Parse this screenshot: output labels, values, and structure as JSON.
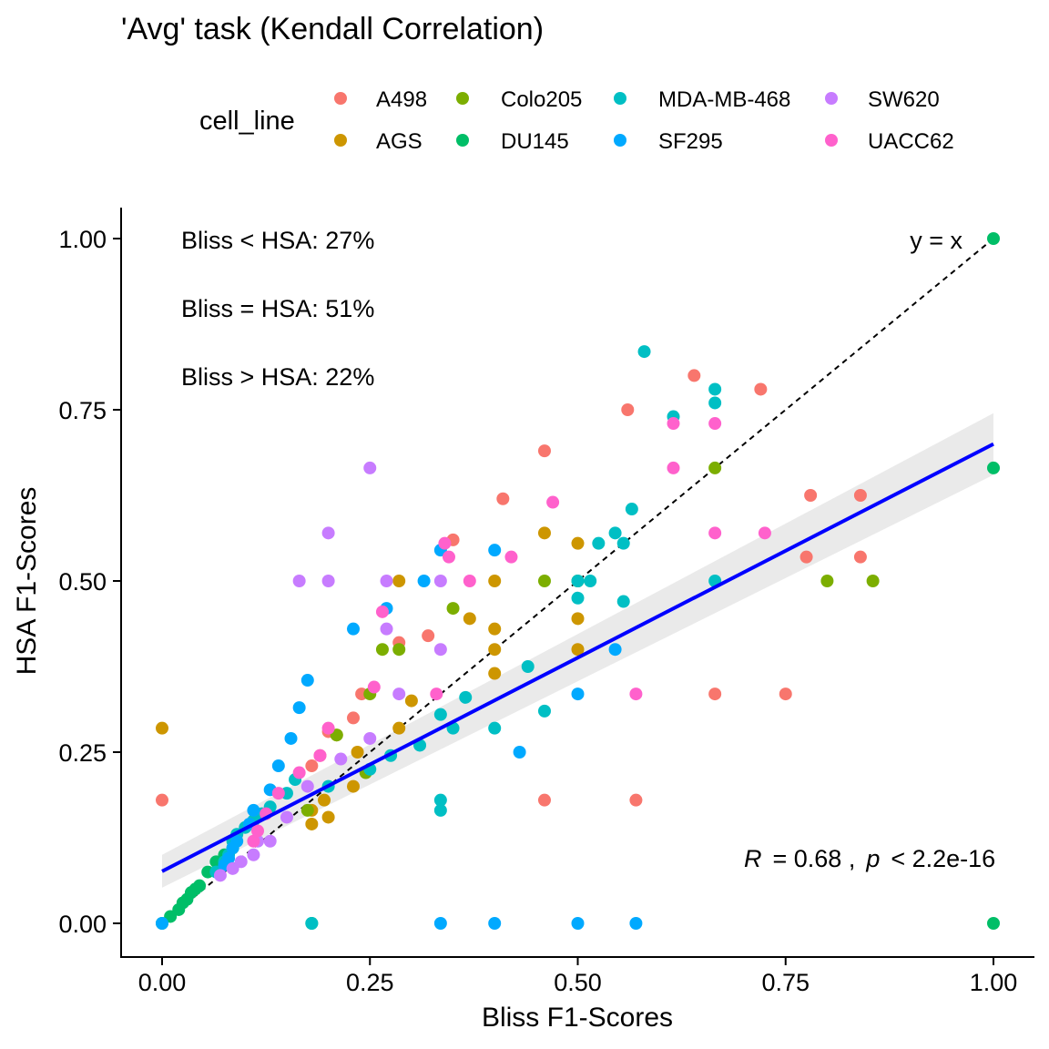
{
  "chart_data": {
    "type": "scatter",
    "title": "'Avg' task (Kendall Correlation)",
    "xlabel": "Bliss F1-Scores",
    "ylabel": "HSA F1-Scores",
    "xlim": [
      -0.1,
      1.1
    ],
    "ylim": [
      -0.05,
      1.05
    ],
    "xticks": [
      "0.00",
      "0.25",
      "0.50",
      "0.75",
      "1.00"
    ],
    "yticks": [
      "0.00",
      "0.25",
      "0.50",
      "0.75",
      "1.00"
    ],
    "grid": false,
    "legend": {
      "title": "cell_line",
      "position": "top",
      "entries": [
        {
          "name": "A498",
          "color": "#F8766D"
        },
        {
          "name": "AGS",
          "color": "#CD9600"
        },
        {
          "name": "Colo205",
          "color": "#7CAE00"
        },
        {
          "name": "DU145",
          "color": "#00BE67"
        },
        {
          "name": "MDA-MB-468",
          "color": "#00BFC4"
        },
        {
          "name": "SF295",
          "color": "#00A9FF"
        },
        {
          "name": "SW620",
          "color": "#C77CFF"
        },
        {
          "name": "UACC62",
          "color": "#FF61CC"
        }
      ]
    },
    "series": [
      {
        "name": "A498",
        "points": [
          [
            0.0,
            0.18
          ],
          [
            0.18,
            0.23
          ],
          [
            0.19,
            0.245
          ],
          [
            0.2,
            0.28
          ],
          [
            0.24,
            0.335
          ],
          [
            0.23,
            0.3
          ],
          [
            0.285,
            0.41
          ],
          [
            0.32,
            0.42
          ],
          [
            0.35,
            0.56
          ],
          [
            0.41,
            0.62
          ],
          [
            0.46,
            0.69
          ],
          [
            0.56,
            0.75
          ],
          [
            0.64,
            0.8
          ],
          [
            0.72,
            0.78
          ],
          [
            0.78,
            0.625
          ],
          [
            0.84,
            0.625
          ],
          [
            0.84,
            0.535
          ],
          [
            0.775,
            0.535
          ],
          [
            0.46,
            0.18
          ],
          [
            0.57,
            0.18
          ],
          [
            0.665,
            0.335
          ],
          [
            0.75,
            0.335
          ]
        ]
      },
      {
        "name": "AGS",
        "points": [
          [
            0.0,
            0.285
          ],
          [
            0.18,
            0.165
          ],
          [
            0.18,
            0.145
          ],
          [
            0.195,
            0.18
          ],
          [
            0.2,
            0.155
          ],
          [
            0.21,
            0.275
          ],
          [
            0.23,
            0.2
          ],
          [
            0.235,
            0.25
          ],
          [
            0.285,
            0.285
          ],
          [
            0.285,
            0.5
          ],
          [
            0.3,
            0.325
          ],
          [
            0.37,
            0.445
          ],
          [
            0.4,
            0.5
          ],
          [
            0.4,
            0.43
          ],
          [
            0.4,
            0.4
          ],
          [
            0.4,
            0.365
          ],
          [
            0.46,
            0.57
          ],
          [
            0.5,
            0.555
          ],
          [
            0.5,
            0.445
          ],
          [
            0.5,
            0.4
          ]
        ]
      },
      {
        "name": "Colo205",
        "points": [
          [
            0.175,
            0.165
          ],
          [
            0.21,
            0.275
          ],
          [
            0.245,
            0.22
          ],
          [
            0.25,
            0.335
          ],
          [
            0.265,
            0.4
          ],
          [
            0.285,
            0.4
          ],
          [
            0.35,
            0.46
          ],
          [
            0.46,
            0.5
          ],
          [
            0.5,
            0.5
          ],
          [
            0.665,
            0.665
          ],
          [
            0.8,
            0.5
          ],
          [
            0.855,
            0.5
          ]
        ]
      },
      {
        "name": "DU145",
        "points": [
          [
            0.0,
            0.0
          ],
          [
            0.01,
            0.01
          ],
          [
            0.02,
            0.02
          ],
          [
            0.025,
            0.03
          ],
          [
            0.03,
            0.035
          ],
          [
            0.035,
            0.045
          ],
          [
            0.04,
            0.05
          ],
          [
            0.045,
            0.055
          ],
          [
            0.055,
            0.075
          ],
          [
            0.065,
            0.09
          ],
          [
            0.075,
            0.1
          ],
          [
            0.085,
            0.11
          ],
          [
            0.18,
            0.0
          ],
          [
            1.0,
            1.0
          ],
          [
            1.0,
            0.665
          ],
          [
            1.0,
            0.0
          ]
        ]
      },
      {
        "name": "MDA-MB-468",
        "points": [
          [
            0.065,
            0.075
          ],
          [
            0.075,
            0.09
          ],
          [
            0.08,
            0.1
          ],
          [
            0.085,
            0.12
          ],
          [
            0.09,
            0.13
          ],
          [
            0.1,
            0.14
          ],
          [
            0.11,
            0.15
          ],
          [
            0.12,
            0.16
          ],
          [
            0.13,
            0.17
          ],
          [
            0.15,
            0.19
          ],
          [
            0.16,
            0.21
          ],
          [
            0.18,
            0.0
          ],
          [
            0.2,
            0.2
          ],
          [
            0.25,
            0.225
          ],
          [
            0.275,
            0.245
          ],
          [
            0.31,
            0.26
          ],
          [
            0.335,
            0.305
          ],
          [
            0.335,
            0.18
          ],
          [
            0.335,
            0.165
          ],
          [
            0.35,
            0.285
          ],
          [
            0.365,
            0.33
          ],
          [
            0.4,
            0.285
          ],
          [
            0.44,
            0.375
          ],
          [
            0.46,
            0.31
          ],
          [
            0.5,
            0.475
          ],
          [
            0.5,
            0.5
          ],
          [
            0.515,
            0.5
          ],
          [
            0.525,
            0.555
          ],
          [
            0.545,
            0.57
          ],
          [
            0.555,
            0.47
          ],
          [
            0.555,
            0.555
          ],
          [
            0.565,
            0.605
          ],
          [
            0.58,
            0.835
          ],
          [
            0.615,
            0.74
          ],
          [
            0.665,
            0.78
          ],
          [
            0.665,
            0.76
          ],
          [
            0.665,
            0.5
          ]
        ]
      },
      {
        "name": "SF295",
        "points": [
          [
            0.0,
            0.0
          ],
          [
            0.075,
            0.085
          ],
          [
            0.08,
            0.095
          ],
          [
            0.085,
            0.11
          ],
          [
            0.09,
            0.12
          ],
          [
            0.105,
            0.145
          ],
          [
            0.11,
            0.165
          ],
          [
            0.13,
            0.195
          ],
          [
            0.14,
            0.23
          ],
          [
            0.155,
            0.27
          ],
          [
            0.165,
            0.315
          ],
          [
            0.175,
            0.355
          ],
          [
            0.23,
            0.43
          ],
          [
            0.27,
            0.46
          ],
          [
            0.315,
            0.5
          ],
          [
            0.335,
            0.545
          ],
          [
            0.335,
            0.0
          ],
          [
            0.4,
            0.545
          ],
          [
            0.4,
            0.0
          ],
          [
            0.43,
            0.25
          ],
          [
            0.5,
            0.335
          ],
          [
            0.5,
            0.0
          ],
          [
            0.545,
            0.4
          ],
          [
            0.57,
            0.0
          ]
        ]
      },
      {
        "name": "SW620",
        "points": [
          [
            0.07,
            0.07
          ],
          [
            0.085,
            0.08
          ],
          [
            0.095,
            0.09
          ],
          [
            0.11,
            0.1
          ],
          [
            0.115,
            0.12
          ],
          [
            0.13,
            0.12
          ],
          [
            0.15,
            0.155
          ],
          [
            0.165,
            0.5
          ],
          [
            0.175,
            0.2
          ],
          [
            0.2,
            0.57
          ],
          [
            0.2,
            0.5
          ],
          [
            0.215,
            0.24
          ],
          [
            0.25,
            0.665
          ],
          [
            0.25,
            0.27
          ],
          [
            0.27,
            0.43
          ],
          [
            0.27,
            0.5
          ],
          [
            0.285,
            0.335
          ],
          [
            0.335,
            0.5
          ],
          [
            0.335,
            0.4
          ]
        ]
      },
      {
        "name": "UACC62",
        "points": [
          [
            0.11,
            0.12
          ],
          [
            0.115,
            0.135
          ],
          [
            0.125,
            0.16
          ],
          [
            0.14,
            0.19
          ],
          [
            0.165,
            0.22
          ],
          [
            0.19,
            0.245
          ],
          [
            0.2,
            0.285
          ],
          [
            0.255,
            0.345
          ],
          [
            0.265,
            0.455
          ],
          [
            0.33,
            0.335
          ],
          [
            0.34,
            0.555
          ],
          [
            0.345,
            0.535
          ],
          [
            0.37,
            0.5
          ],
          [
            0.42,
            0.535
          ],
          [
            0.47,
            0.615
          ],
          [
            0.57,
            0.335
          ],
          [
            0.615,
            0.73
          ],
          [
            0.615,
            0.665
          ],
          [
            0.665,
            0.73
          ],
          [
            0.665,
            0.57
          ],
          [
            0.725,
            0.57
          ]
        ]
      }
    ],
    "reference_line": {
      "label": "y = x",
      "slope": 1,
      "intercept": 0,
      "style": "dashed",
      "color": "#000000"
    },
    "regression": {
      "x": [
        0.0,
        1.0
      ],
      "y": [
        0.076,
        0.7
      ],
      "color": "#0000FF",
      "ci_lower": [
        0.052,
        0.655
      ],
      "ci_upper": [
        0.1,
        0.745
      ],
      "ci_color": "#D9D9D9"
    },
    "annotations": {
      "lt": "Bliss < HSA: 27%",
      "eq": "Bliss = HSA: 51%",
      "gt": "Bliss > HSA: 22%",
      "r_symbol": "R",
      "r_value": "=  0.68  ,",
      "p_symbol": "p",
      "p_value": "<  2.2e-16"
    }
  }
}
